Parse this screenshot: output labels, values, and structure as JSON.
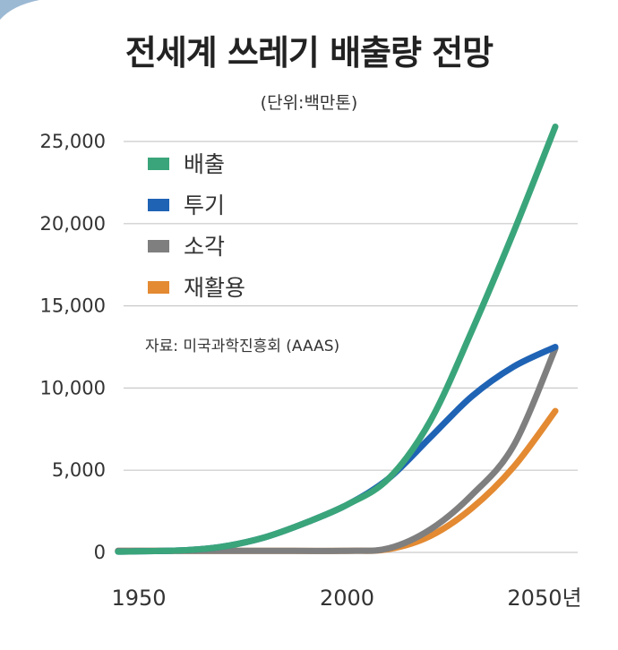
{
  "chart_data": {
    "type": "line",
    "title": "전세계 쓰레기 배출량 전망",
    "subtitle": "(단위:백만톤)",
    "source": "자료: 미국과학진흥회 (AAAS)",
    "x_tick_labels": [
      "1950",
      "2000",
      "2050년"
    ],
    "x_ticks": [
      1950,
      2000,
      2050
    ],
    "y_tick_labels": [
      "0",
      "5,000",
      "10,000",
      "15,000",
      "20,000",
      "25,000"
    ],
    "y_ticks": [
      0,
      5000,
      10000,
      15000,
      20000,
      25000
    ],
    "xlim": [
      1950,
      2050
    ],
    "ylim": [
      0,
      25000
    ],
    "grid": "horizontal",
    "legend_position": "top-left",
    "series": [
      {
        "name": "배출",
        "color": "#3aa57a",
        "x": [
          1945,
          1960,
          1970,
          1980,
          1990,
          2000,
          2010,
          2020,
          2030,
          2040,
          2050
        ],
        "y": [
          50,
          120,
          350,
          900,
          1800,
          2900,
          4500,
          8000,
          13500,
          19500,
          25900
        ]
      },
      {
        "name": "투기",
        "color": "#1f63b5",
        "x": [
          1945,
          1960,
          1970,
          1980,
          1990,
          2000,
          2010,
          2020,
          2030,
          2040,
          2050
        ],
        "y": [
          50,
          120,
          350,
          900,
          1800,
          2900,
          4500,
          7000,
          9500,
          11300,
          12500
        ]
      },
      {
        "name": "소각",
        "color": "#7f7f7f",
        "x": [
          1945,
          1960,
          1980,
          2000,
          2010,
          2020,
          2030,
          2040,
          2050
        ],
        "y": [
          100,
          100,
          100,
          100,
          250,
          1400,
          3500,
          6500,
          12400
        ]
      },
      {
        "name": "재활용",
        "color": "#e38a32",
        "x": [
          1945,
          1960,
          1980,
          2000,
          2010,
          2020,
          2030,
          2040,
          2050
        ],
        "y": [
          100,
          100,
          100,
          100,
          200,
          1000,
          2700,
          5200,
          8600
        ]
      }
    ]
  }
}
